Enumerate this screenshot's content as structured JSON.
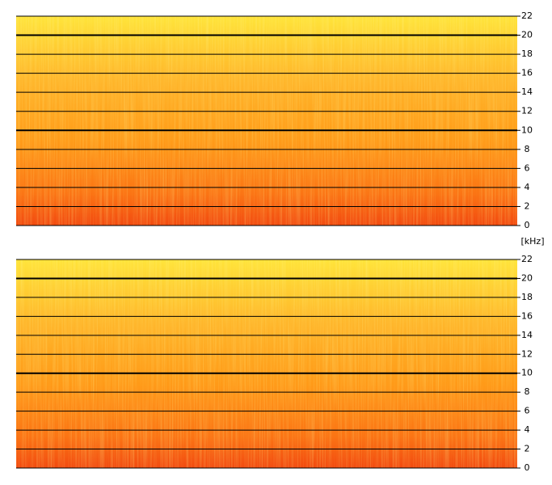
{
  "chart_data": [
    {
      "type": "spectrogram",
      "ylim": [
        0,
        22
      ],
      "yticks": [
        0,
        2,
        4,
        6,
        8,
        10,
        12,
        14,
        16,
        18,
        20,
        22
      ],
      "grid": true,
      "ylabel": "[kHz]"
    },
    {
      "type": "spectrogram",
      "ylim": [
        0,
        22
      ],
      "yticks": [
        0,
        2,
        4,
        6,
        8,
        10,
        12,
        14,
        16,
        18,
        20,
        22
      ],
      "grid": true
    }
  ]
}
